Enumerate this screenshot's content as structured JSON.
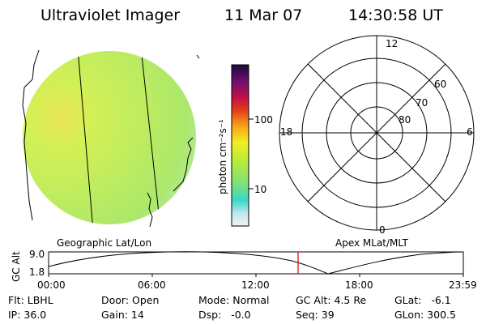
{
  "header": {
    "title": "Ultraviolet Imager",
    "date": "11 Mar 07",
    "time": "14:30:58 UT"
  },
  "colorbar": {
    "label": "photon cm⁻²s⁻¹",
    "ticks": [
      "100",
      "10"
    ]
  },
  "polar": {
    "mlt_labels": [
      "12",
      "18",
      "6",
      "0"
    ],
    "lat_labels": [
      "60",
      "70",
      "80"
    ]
  },
  "globe": {
    "label": "Geographic Lat/Lon"
  },
  "apex": {
    "label": "Apex MLat/MLT"
  },
  "altplot": {
    "ylabel": "GC Alt",
    "yticks": [
      "9.0",
      "1.8"
    ],
    "xticks": [
      "00:00",
      "06:00",
      "12:00",
      "18:00",
      "23:59"
    ]
  },
  "info": {
    "flt": "Flt: LBHL",
    "ip": "IP: 36.0",
    "door": "Door: Open",
    "gain": "Gain: 14",
    "mode": "Mode: Normal",
    "dsp": "Dsp:   -0.0",
    "gcalt": "GC Alt: 4.5 Re",
    "seq": "Seq: 39",
    "glat": "GLat:   -6.1",
    "glon": "GLon: 300.5"
  },
  "colors": {
    "image_base": "#c8ec3a",
    "marker": "#dd0000"
  }
}
